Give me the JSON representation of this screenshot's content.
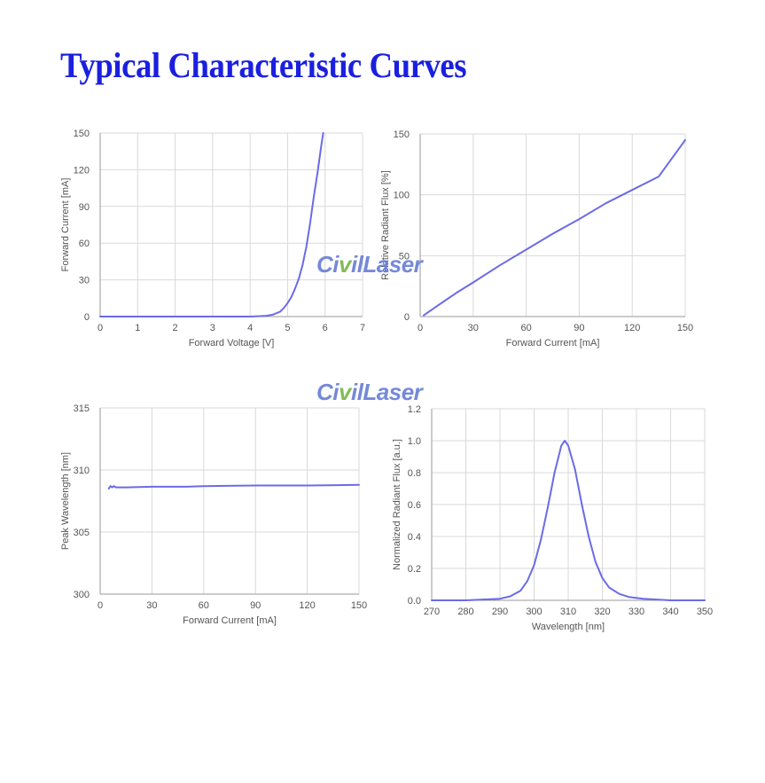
{
  "page": {
    "title": "Typical Characteristic Curves",
    "watermark": {
      "brand_prefix": "Ci",
      "brand_v": "v",
      "brand_suffix": "ilLaser"
    }
  },
  "colors": {
    "title": "#1a1fe0",
    "line": "#6b6be6",
    "grid": "#d9d9d9",
    "axis": "#9a9a9a",
    "text": "#555555"
  },
  "chart_data": [
    {
      "type": "line",
      "xlabel": "Forward Voltage [V]",
      "ylabel": "Forward Current [mA]",
      "xlim": [
        0,
        7
      ],
      "ylim": [
        0,
        150
      ],
      "xticks": [
        0,
        1,
        2,
        3,
        4,
        5,
        6,
        7
      ],
      "yticks": [
        0,
        30,
        60,
        90,
        120,
        150
      ],
      "grid": true,
      "series": [
        {
          "x": [
            0,
            1,
            2,
            3,
            4,
            4.4,
            4.6,
            4.8,
            4.9,
            5.0,
            5.1,
            5.2,
            5.3,
            5.4,
            5.5,
            5.6,
            5.7,
            5.8,
            5.9,
            5.95
          ],
          "y": [
            0,
            0,
            0,
            0,
            0,
            0.5,
            1.5,
            4,
            7,
            11,
            16,
            23,
            31,
            42,
            57,
            76,
            98,
            118,
            140,
            150
          ]
        }
      ]
    },
    {
      "type": "line",
      "xlabel": "Forward Current [mA]",
      "ylabel": "Relative Radiant Flux [%]",
      "xlim": [
        0,
        150
      ],
      "ylim": [
        0,
        150
      ],
      "xticks": [
        0,
        30,
        60,
        90,
        120,
        150
      ],
      "yticks": [
        0,
        50,
        100,
        150
      ],
      "grid": true,
      "series": [
        {
          "x": [
            2,
            10,
            20,
            30,
            45,
            60,
            75,
            90,
            105,
            120,
            135,
            150
          ],
          "y": [
            1,
            9,
            19,
            28,
            42,
            55,
            68,
            80,
            93,
            104,
            115,
            145
          ]
        }
      ]
    },
    {
      "type": "line",
      "xlabel": "Forward Current [mA]",
      "ylabel": "Peak Wavelength [nm]",
      "xlim": [
        0,
        150
      ],
      "ylim": [
        300,
        315
      ],
      "xticks": [
        0,
        30,
        60,
        90,
        120,
        150
      ],
      "yticks": [
        300,
        305,
        310,
        315
      ],
      "grid": true,
      "series": [
        {
          "x": [
            5,
            6,
            7,
            8,
            9,
            10,
            15,
            30,
            50,
            60,
            90,
            120,
            150
          ],
          "y": [
            308.5,
            308.7,
            308.6,
            308.7,
            308.6,
            308.6,
            308.6,
            308.65,
            308.65,
            308.7,
            308.75,
            308.75,
            308.8
          ]
        }
      ]
    },
    {
      "type": "line",
      "xlabel": "Wavelength [nm]",
      "ylabel": "Normalized Radiant Flux [a.u.]",
      "xlim": [
        270,
        350
      ],
      "ylim": [
        0,
        1.2
      ],
      "xticks": [
        270,
        280,
        290,
        300,
        310,
        320,
        330,
        340,
        350
      ],
      "yticks": [
        0.0,
        0.2,
        0.4,
        0.6,
        0.8,
        1.0,
        1.2
      ],
      "ytick_labels": [
        "0.0",
        "0.2",
        "0.4",
        "0.6",
        "0.8",
        "1.0",
        "1.2"
      ],
      "grid": true,
      "series": [
        {
          "x": [
            270,
            280,
            285,
            290,
            293,
            296,
            298,
            300,
            302,
            304,
            306,
            308,
            309,
            310,
            312,
            314,
            316,
            318,
            320,
            322,
            325,
            328,
            332,
            336,
            340,
            345,
            350
          ],
          "y": [
            0.0,
            0.0,
            0.005,
            0.01,
            0.025,
            0.06,
            0.12,
            0.22,
            0.38,
            0.58,
            0.8,
            0.97,
            1.0,
            0.97,
            0.82,
            0.6,
            0.4,
            0.24,
            0.14,
            0.08,
            0.04,
            0.02,
            0.01,
            0.005,
            0.0,
            0.0,
            0.0
          ]
        }
      ]
    }
  ]
}
